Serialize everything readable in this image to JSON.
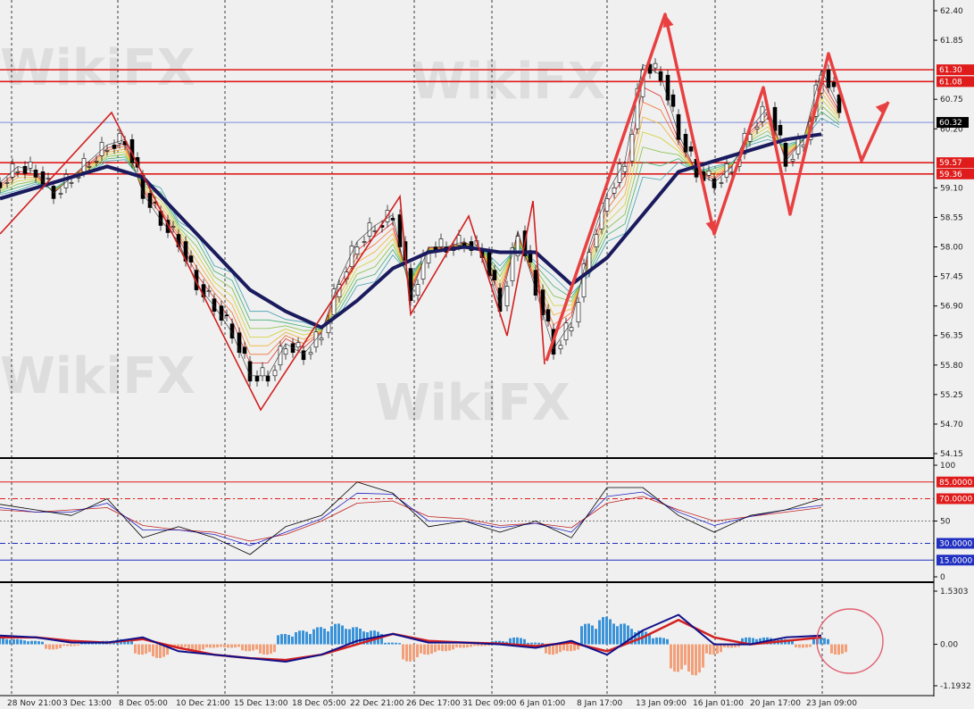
{
  "watermark": "WikiFX",
  "colors": {
    "background": "#f0f0f0",
    "level_red": "#e01b1b",
    "level_blue": "#3050d0",
    "ma": "#1a1a5e",
    "zigzag": "#e84040",
    "hist_pos": "#3a93d8",
    "hist_neg": "#f2a07a",
    "macd": "#10108a",
    "signal": "#d42020",
    "stoch_main": "#000000",
    "stoch_blue": "#2020c0",
    "stoch_red": "#c02020"
  },
  "x_ticks": [
    "28 Nov 21:00",
    "3 Dec 13:00",
    "8 Dec 05:00",
    "10 Dec 21:00",
    "15 Dec 13:00",
    "18 Dec 05:00",
    "22 Dec 21:00",
    "26 Dec 17:00",
    "31 Dec 09:00",
    "6 Jan 01:00",
    "8 Jan 17:00",
    "13 Jan 09:00",
    "16 Jan 01:00",
    "20 Jan 17:00",
    "23 Jan 09:00"
  ],
  "chart_data": [
    {
      "type": "line",
      "panel": "price",
      "y_ticks": [
        "62.40",
        "61.85",
        "60.75",
        "60.20",
        "59.10",
        "58.55",
        "58.00",
        "57.45",
        "56.90",
        "56.35",
        "55.80",
        "55.25",
        "54.70",
        "54.15"
      ],
      "ylim": [
        54.15,
        62.4
      ],
      "levels": [
        {
          "value": 61.3,
          "label": "61.30",
          "color": "#e01b1b"
        },
        {
          "value": 61.08,
          "label": "61.08",
          "color": "#e01b1b"
        },
        {
          "value": 59.57,
          "label": "59.57",
          "color": "#e01b1b"
        },
        {
          "value": 59.36,
          "label": "59.36",
          "color": "#e01b1b"
        }
      ],
      "current_price": {
        "value": 60.32,
        "label": "60.32"
      },
      "series": [
        {
          "role": "close",
          "values": [
            59.2,
            59.5,
            59.4,
            59.0,
            59.3,
            59.6,
            59.9,
            60.0,
            59.0,
            58.5,
            58.1,
            57.3,
            56.9,
            56.4,
            55.6,
            55.6,
            56.2,
            56.0,
            56.4,
            57.4,
            58.1,
            58.4,
            58.6,
            57.1,
            58.0,
            58.0,
            58.1,
            57.9,
            56.9,
            58.3,
            57.2,
            56.1,
            56.6,
            58.0,
            59.0,
            59.6,
            61.4,
            61.2,
            60.1,
            59.4,
            59.2,
            59.5,
            60.2,
            60.6,
            59.6,
            60.0,
            61.3,
            60.6
          ]
        },
        {
          "role": "moving-average",
          "values": [
            58.9,
            59.1,
            59.3,
            59.5,
            59.3,
            58.6,
            57.9,
            57.2,
            56.8,
            56.5,
            57.0,
            57.6,
            57.9,
            58.0,
            57.9,
            57.9,
            57.3,
            57.8,
            58.6,
            59.4,
            59.6,
            59.8,
            60.0,
            60.1
          ]
        }
      ]
    },
    {
      "type": "line",
      "panel": "stochastic",
      "ylim": [
        0,
        100
      ],
      "y_ticks": [
        "100",
        "50",
        "0"
      ],
      "levels": [
        {
          "value": 85,
          "label": "85.0000",
          "color": "#e01b1b"
        },
        {
          "value": 70,
          "label": "70.0000",
          "color": "#e01b1b"
        },
        {
          "value": 30,
          "label": "30.0000",
          "color": "#2030c0"
        },
        {
          "value": 15,
          "label": "15.0000",
          "color": "#2030c0"
        }
      ],
      "series": [
        {
          "role": "main",
          "values": [
            65,
            60,
            55,
            70,
            35,
            45,
            35,
            20,
            45,
            55,
            85,
            75,
            45,
            50,
            40,
            50,
            35,
            80,
            80,
            55,
            40,
            55,
            60,
            70
          ]
        },
        {
          "role": "signal-blue",
          "values": [
            62,
            58,
            58,
            66,
            42,
            42,
            38,
            28,
            40,
            52,
            75,
            74,
            50,
            50,
            44,
            48,
            40,
            72,
            76,
            58,
            46,
            54,
            60,
            64
          ]
        },
        {
          "role": "signal-red",
          "values": [
            60,
            58,
            60,
            62,
            46,
            42,
            40,
            32,
            38,
            50,
            66,
            68,
            54,
            52,
            46,
            48,
            44,
            66,
            72,
            60,
            50,
            54,
            58,
            62
          ]
        }
      ]
    },
    {
      "type": "bar",
      "panel": "macd",
      "ylim": [
        -1.1932,
        1.5303
      ],
      "y_ticks": [
        "1.5303",
        "0.00",
        "-1.1932"
      ],
      "histogram": [
        0.2,
        0.15,
        0.1,
        -0.15,
        -0.05,
        0.05,
        0.1,
        0.15,
        -0.3,
        -0.4,
        -0.1,
        -0.2,
        -0.1,
        -0.1,
        -0.2,
        -0.3,
        0.3,
        0.4,
        0.5,
        0.6,
        0.5,
        0.4,
        0.05,
        -0.5,
        -0.3,
        -0.2,
        -0.1,
        -0.05,
        0.1,
        0.2,
        0.05,
        -0.3,
        -0.2,
        0.6,
        0.8,
        0.6,
        0.4,
        0.2,
        -0.8,
        -0.9,
        -0.3,
        -0.1,
        0.2,
        0.2,
        0.15,
        -0.1,
        0.2,
        -0.3
      ],
      "series": [
        {
          "role": "macd",
          "values": [
            0.25,
            0.2,
            0.05,
            0.05,
            0.2,
            -0.2,
            -0.3,
            -0.4,
            -0.5,
            -0.3,
            0.1,
            0.3,
            0.05,
            0.05,
            0.0,
            -0.1,
            0.1,
            -0.3,
            0.4,
            0.85,
            0.0,
            0.0,
            0.2,
            0.25
          ]
        },
        {
          "role": "signal",
          "values": [
            0.2,
            0.2,
            0.1,
            0.05,
            0.15,
            -0.1,
            -0.3,
            -0.4,
            -0.45,
            -0.3,
            0.0,
            0.3,
            0.1,
            0.05,
            0.02,
            -0.05,
            0.05,
            -0.2,
            0.2,
            0.7,
            0.2,
            0.0,
            0.1,
            0.2
          ]
        }
      ]
    }
  ]
}
